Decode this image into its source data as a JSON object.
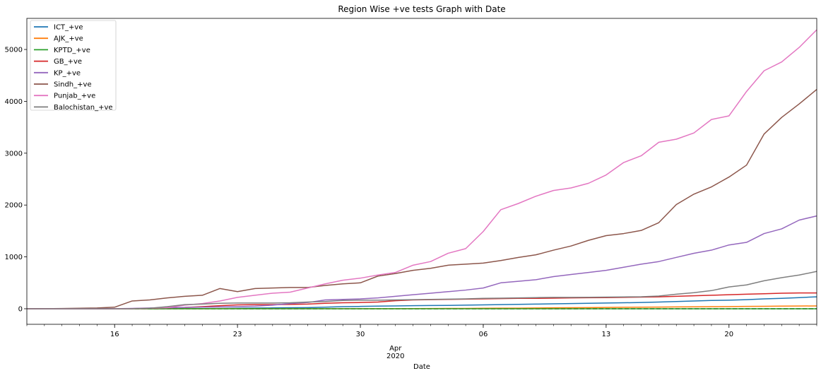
{
  "chart_data": {
    "type": "line",
    "title": "Region Wise +ve tests Graph with Date",
    "xlabel": "Date",
    "ylabel": "",
    "x_dates": [
      "2020-03-11",
      "2020-03-12",
      "2020-03-13",
      "2020-03-14",
      "2020-03-15",
      "2020-03-16",
      "2020-03-17",
      "2020-03-18",
      "2020-03-19",
      "2020-03-20",
      "2020-03-21",
      "2020-03-22",
      "2020-03-23",
      "2020-03-24",
      "2020-03-25",
      "2020-03-26",
      "2020-03-27",
      "2020-03-28",
      "2020-03-29",
      "2020-03-30",
      "2020-03-31",
      "2020-04-01",
      "2020-04-02",
      "2020-04-03",
      "2020-04-04",
      "2020-04-05",
      "2020-04-06",
      "2020-04-07",
      "2020-04-08",
      "2020-04-09",
      "2020-04-10",
      "2020-04-11",
      "2020-04-12",
      "2020-04-13",
      "2020-04-14",
      "2020-04-15",
      "2020-04-16",
      "2020-04-17",
      "2020-04-18",
      "2020-04-19",
      "2020-04-20",
      "2020-04-21",
      "2020-04-22",
      "2020-04-23",
      "2020-04-24",
      "2020-04-25"
    ],
    "x_range": [
      "2020-03-11",
      "2020-04-25"
    ],
    "x_tick_labels": [
      {
        "date": "2020-03-16",
        "label": "16"
      },
      {
        "date": "2020-03-23",
        "label": "23"
      },
      {
        "date": "2020-03-30",
        "label": "30"
      },
      {
        "date": "2020-04-06",
        "label": "06"
      },
      {
        "date": "2020-04-13",
        "label": "13"
      },
      {
        "date": "2020-04-20",
        "label": "20"
      }
    ],
    "x_month_label": {
      "date": "2020-04-01",
      "month": "Apr",
      "year": "2020"
    },
    "ylim": [
      -300,
      5600
    ],
    "y_ticks": [
      0,
      1000,
      2000,
      3000,
      4000,
      5000
    ],
    "grid": false,
    "legend_position": "top-left",
    "reference_line": {
      "y": 0,
      "style": "dashed",
      "color": "#000000"
    },
    "series": [
      {
        "name": "ICT_+ve",
        "color": "#1f77b4",
        "values": [
          0,
          0,
          0,
          0,
          0,
          1,
          1,
          2,
          2,
          3,
          3,
          5,
          10,
          15,
          16,
          20,
          22,
          30,
          40,
          45,
          50,
          55,
          60,
          62,
          65,
          70,
          75,
          80,
          85,
          90,
          95,
          100,
          105,
          110,
          115,
          120,
          130,
          140,
          150,
          160,
          165,
          175,
          190,
          200,
          215,
          230
        ]
      },
      {
        "name": "AJK_+ve",
        "color": "#ff7f0e",
        "values": [
          0,
          0,
          0,
          0,
          0,
          0,
          0,
          0,
          0,
          0,
          0,
          1,
          1,
          1,
          1,
          1,
          1,
          1,
          1,
          1,
          2,
          2,
          3,
          5,
          6,
          6,
          10,
          11,
          12,
          15,
          18,
          20,
          22,
          25,
          28,
          30,
          32,
          35,
          38,
          40,
          42,
          45,
          48,
          50,
          52,
          55
        ]
      },
      {
        "name": "KPTD_+ve",
        "color": "#2ca02c",
        "values": [
          0,
          0,
          0,
          0,
          0,
          0,
          0,
          0,
          0,
          0,
          0,
          0,
          0,
          0,
          0,
          0,
          0,
          0,
          0,
          0,
          0,
          0,
          0,
          0,
          0,
          0,
          0,
          0,
          0,
          0,
          0,
          0,
          0,
          0,
          0,
          0,
          0,
          0,
          0,
          0,
          0,
          0,
          0,
          0,
          0,
          0
        ]
      },
      {
        "name": "GB_+ve",
        "color": "#d62728",
        "values": [
          0,
          0,
          0,
          0,
          0,
          1,
          3,
          10,
          20,
          25,
          40,
          60,
          75,
          80,
          80,
          84,
          90,
          105,
          115,
          120,
          130,
          155,
          170,
          175,
          180,
          185,
          190,
          195,
          200,
          200,
          205,
          210,
          212,
          215,
          220,
          225,
          230,
          240,
          250,
          260,
          270,
          280,
          290,
          300,
          305,
          305
        ]
      },
      {
        "name": "KP_+ve",
        "color": "#9467bd",
        "values": [
          0,
          0,
          0,
          0,
          0,
          1,
          7,
          15,
          20,
          25,
          30,
          35,
          40,
          50,
          70,
          100,
          120,
          170,
          180,
          190,
          210,
          240,
          270,
          300,
          330,
          360,
          400,
          500,
          530,
          560,
          620,
          660,
          700,
          740,
          800,
          860,
          910,
          990,
          1070,
          1130,
          1230,
          1280,
          1450,
          1540,
          1710,
          1790
        ]
      },
      {
        "name": "Sindh_+ve",
        "color": "#8c564b",
        "values": [
          0,
          2,
          5,
          10,
          15,
          30,
          150,
          170,
          210,
          240,
          260,
          390,
          330,
          390,
          400,
          410,
          410,
          450,
          480,
          500,
          630,
          680,
          740,
          780,
          840,
          860,
          880,
          930,
          990,
          1040,
          1130,
          1210,
          1320,
          1410,
          1450,
          1510,
          1660,
          2010,
          2210,
          2350,
          2540,
          2770,
          3370,
          3690,
          3950,
          4230
        ]
      },
      {
        "name": "Punjab_+ve",
        "color": "#e377c2",
        "values": [
          0,
          0,
          0,
          0,
          0,
          0,
          2,
          10,
          20,
          70,
          100,
          150,
          220,
          260,
          300,
          320,
          400,
          480,
          550,
          590,
          650,
          700,
          840,
          910,
          1070,
          1160,
          1490,
          1910,
          2030,
          2170,
          2280,
          2330,
          2420,
          2580,
          2820,
          2950,
          3210,
          3270,
          3390,
          3650,
          3720,
          4190,
          4590,
          4760,
          5040,
          5380
        ]
      },
      {
        "name": "Balochistan_+ve",
        "color": "#7f7f7f",
        "values": [
          0,
          0,
          0,
          0,
          0,
          0,
          0,
          10,
          40,
          80,
          90,
          105,
          110,
          110,
          110,
          115,
          130,
          140,
          160,
          165,
          165,
          170,
          175,
          180,
          185,
          190,
          200,
          205,
          210,
          215,
          220,
          220,
          222,
          225,
          228,
          232,
          245,
          280,
          310,
          350,
          420,
          460,
          540,
          600,
          650,
          720
        ]
      }
    ]
  }
}
